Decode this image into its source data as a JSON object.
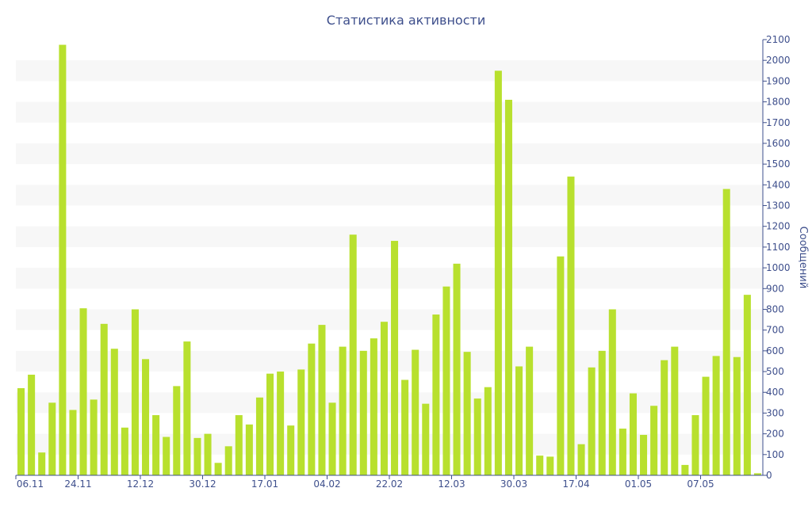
{
  "chart_data": {
    "type": "bar",
    "title": "Статистика активности",
    "xlabel": "",
    "ylabel": "Сообщений",
    "y_axis_side": "right",
    "ylim": [
      0,
      2100
    ],
    "y_ticks": [
      0,
      100,
      200,
      300,
      400,
      500,
      600,
      700,
      800,
      900,
      1000,
      1100,
      1200,
      1300,
      1400,
      1500,
      1600,
      1700,
      1800,
      1900,
      2000,
      2100
    ],
    "x_tick_labels": [
      "06.11",
      "24.11",
      "12.12",
      "30.12",
      "17.01",
      "04.02",
      "22.02",
      "12.03",
      "30.03",
      "17.04",
      "01.05",
      "07.05"
    ],
    "x_tick_bar_index": [
      0,
      6,
      12,
      18,
      24,
      30,
      36,
      42,
      48,
      54,
      60,
      66
    ],
    "grid": "alternating horizontal bands",
    "legend": "none",
    "bar_color": "#b8e02e",
    "values": [
      420,
      485,
      110,
      350,
      2075,
      315,
      805,
      365,
      730,
      610,
      230,
      800,
      560,
      290,
      185,
      430,
      645,
      180,
      200,
      60,
      140,
      290,
      245,
      375,
      490,
      500,
      240,
      510,
      635,
      725,
      350,
      620,
      1160,
      600,
      660,
      740,
      1130,
      460,
      605,
      345,
      775,
      910,
      1020,
      595,
      370,
      425,
      1950,
      1810,
      525,
      620,
      95,
      90,
      1055,
      1440,
      150,
      520,
      600,
      800,
      225,
      395,
      195,
      335,
      555,
      620,
      50,
      290,
      475,
      575,
      1380,
      570,
      870,
      10
    ]
  }
}
